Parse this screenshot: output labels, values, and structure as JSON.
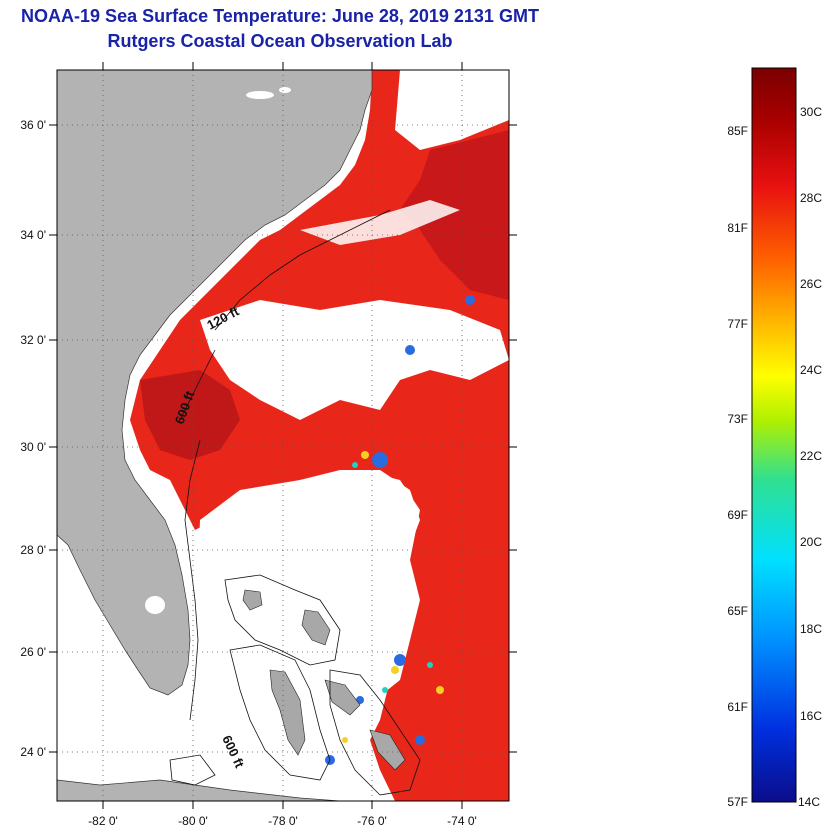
{
  "title": {
    "line1": "NOAA-19 Sea Surface Temperature:  June 28, 2019 2131 GMT",
    "line2": "Rutgers Coastal Ocean Observation Lab"
  },
  "map": {
    "lat_ticks": [
      "36 0'",
      "34 0'",
      "32 0'",
      "30 0'",
      "28 0'",
      "26 0'",
      "24 0'"
    ],
    "lon_ticks": [
      "-82 0'",
      "-80 0'",
      "-78 0'",
      "-76 0'",
      "-74 0'"
    ],
    "isobath_labels": [
      "120 ft",
      "600 ft",
      "600 ft"
    ],
    "colors": {
      "land": "#b3b3b3",
      "cloud": "#ffffff",
      "warm_water": "#e8261a",
      "hot_water": "#c01818",
      "cool_water": "#1f5fd6"
    }
  },
  "colorbar": {
    "celsius_labels": [
      "30C",
      "28C",
      "26C",
      "24C",
      "22C",
      "20C",
      "18C",
      "16C",
      "14C"
    ],
    "fahrenheit_labels": [
      "85F",
      "81F",
      "77F",
      "73F",
      "69F",
      "65F",
      "61F",
      "57F"
    ],
    "min_c": 14,
    "max_c": 31,
    "colors": [
      "#0a0d8a",
      "#0030e0",
      "#0090ff",
      "#00e0ff",
      "#30e090",
      "#b0f000",
      "#ffff00",
      "#ffb000",
      "#ff6000",
      "#e81010",
      "#a80000",
      "#7a0000"
    ]
  }
}
